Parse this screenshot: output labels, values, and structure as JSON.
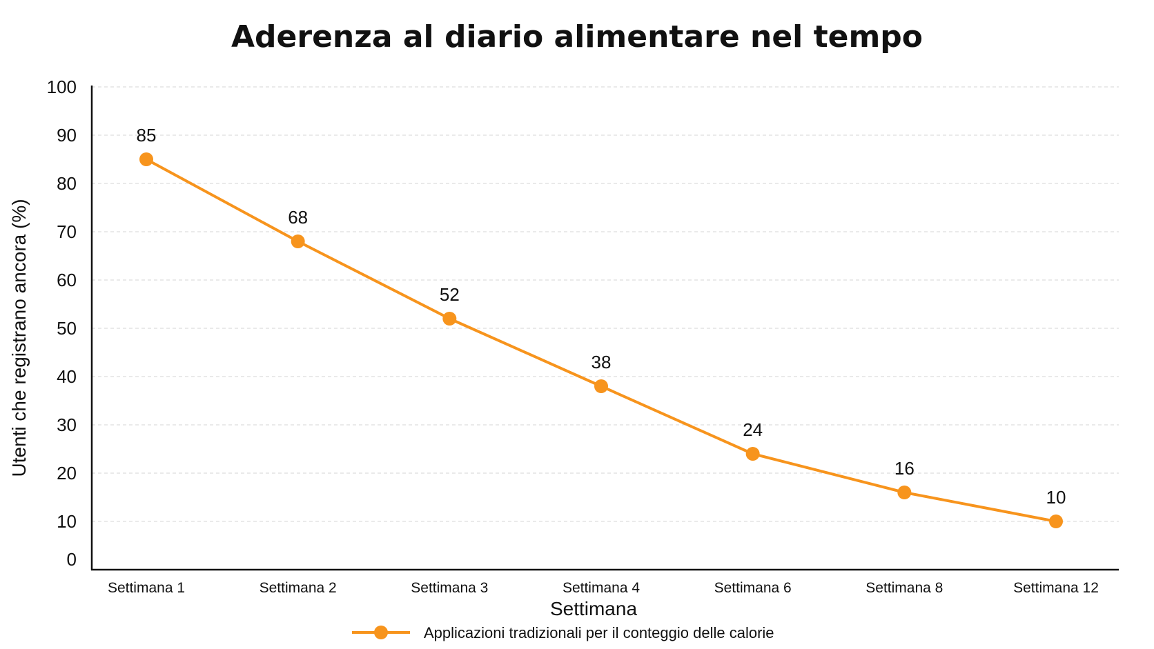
{
  "chart_data": {
    "type": "line",
    "title": "Aderenza al diario alimentare nel tempo",
    "xlabel": "Settimana",
    "ylabel": "Utenti che registrano ancora (%)",
    "categories": [
      "Settimana 1",
      "Settimana 2",
      "Settimana 3",
      "Settimana 4",
      "Settimana 6",
      "Settimana 8",
      "Settimana 12"
    ],
    "series": [
      {
        "name": "Applicazioni tradizionali per il conteggio delle calorie",
        "values": [
          85,
          68,
          52,
          38,
          24,
          16,
          10
        ],
        "color": "#f7941d"
      }
    ],
    "ylim": [
      0,
      100
    ],
    "yticks": [
      0,
      10,
      20,
      30,
      40,
      50,
      60,
      70,
      80,
      90,
      100
    ],
    "grid": true,
    "legend_position": "bottom-center"
  }
}
